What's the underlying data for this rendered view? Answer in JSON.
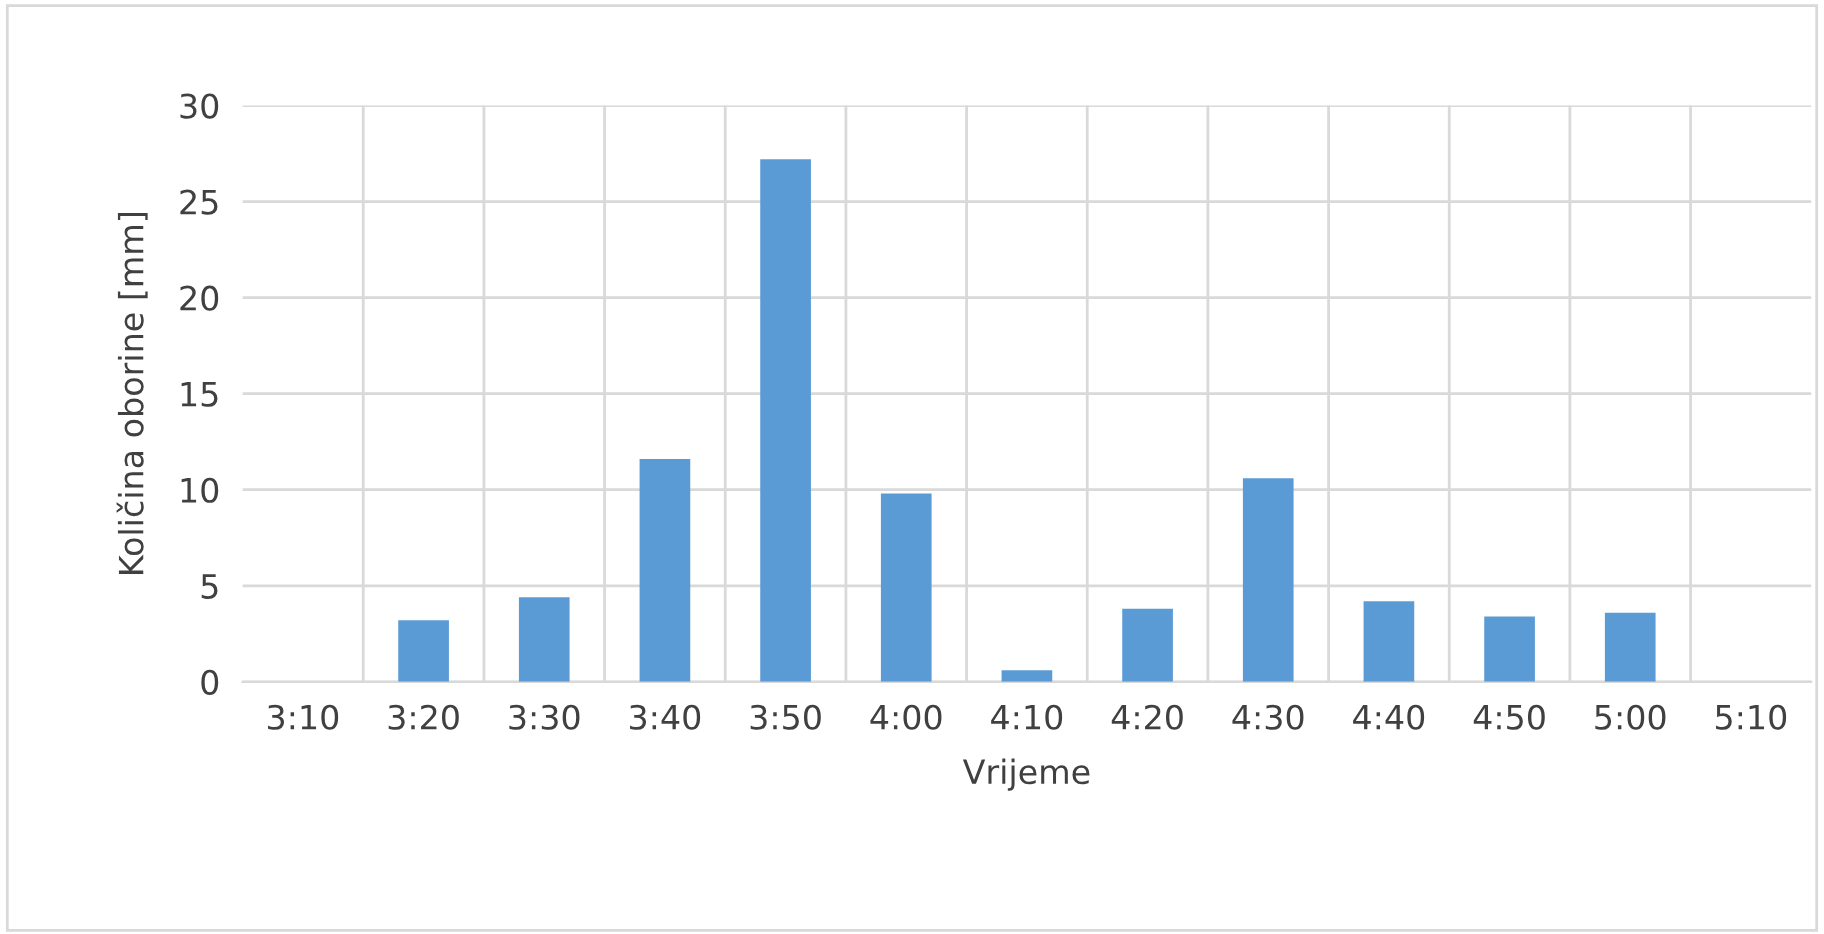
{
  "chart_data": {
    "type": "bar",
    "xlabel": "Vrijeme",
    "ylabel": "Količina oborine [mm]",
    "categories": [
      "3:10",
      "3:20",
      "3:30",
      "3:40",
      "3:50",
      "4:00",
      "4:10",
      "4:20",
      "4:30",
      "4:40",
      "4:50",
      "5:00",
      "5:10"
    ],
    "values": [
      0,
      3.2,
      4.4,
      11.6,
      27.2,
      9.8,
      0.6,
      3.8,
      10.6,
      4.2,
      3.4,
      3.6,
      0
    ],
    "color": "#5b9bd5",
    "ylim": [
      0,
      30
    ],
    "yticks": [
      0,
      5,
      10,
      15,
      20,
      25,
      30
    ],
    "grid": true,
    "legend": false
  }
}
